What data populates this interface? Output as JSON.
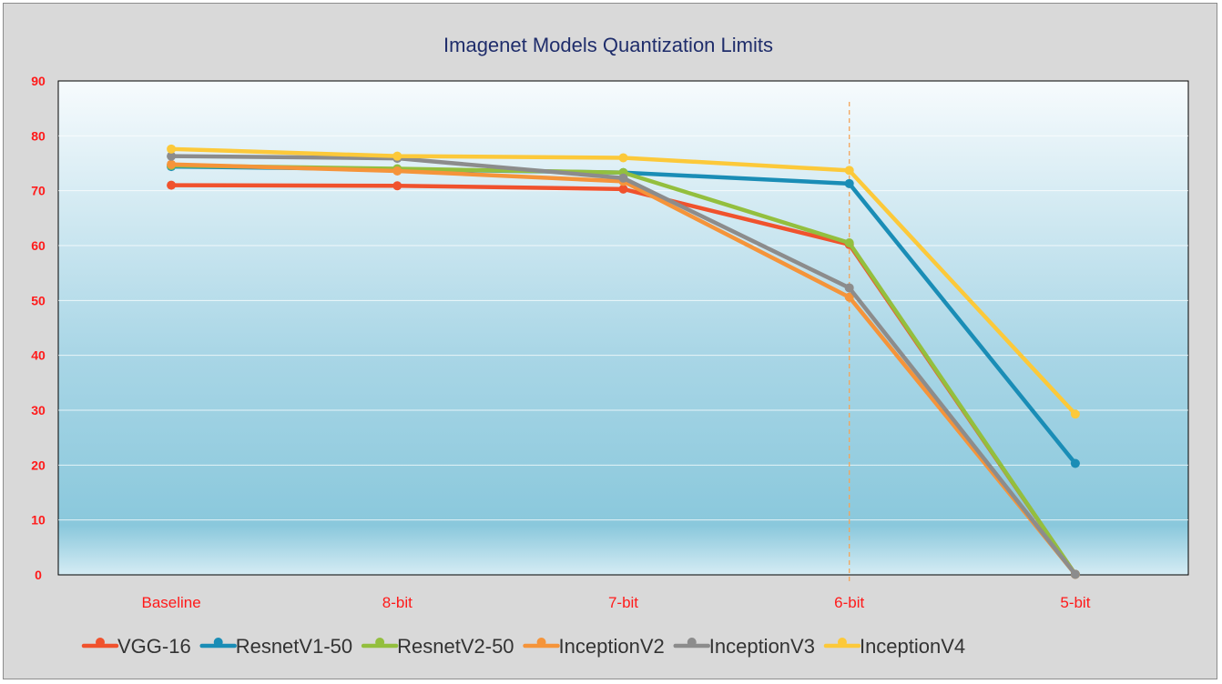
{
  "chart_data": {
    "type": "line",
    "title": "Imagenet Models Quantization Limits",
    "xlabel": "",
    "ylabel": "",
    "categories": [
      "Baseline",
      "8-bit",
      "7-bit",
      "6-bit",
      "5-bit"
    ],
    "ylim": [
      0,
      90
    ],
    "yticks": [
      "0",
      "10",
      "20",
      "30",
      "40",
      "50",
      "60",
      "70",
      "80",
      "90"
    ],
    "grid": true,
    "legend_position": "bottom",
    "reference_line": {
      "category": "6-bit",
      "color": "#f4a55a",
      "style": "dashed"
    },
    "series": [
      {
        "name": "VGG-16",
        "color": "#f0522d",
        "values": [
          71.0,
          70.9,
          70.3,
          60.2,
          0.1
        ]
      },
      {
        "name": "ResnetV1-50",
        "color": "#1a8db6",
        "values": [
          74.4,
          73.9,
          73.3,
          71.3,
          20.3
        ]
      },
      {
        "name": "ResnetV2-50",
        "color": "#93bf3e",
        "values": [
          74.6,
          74.0,
          73.3,
          60.5,
          0.1
        ]
      },
      {
        "name": "InceptionV2",
        "color": "#f5943a",
        "values": [
          74.8,
          73.6,
          71.7,
          50.6,
          0.1
        ]
      },
      {
        "name": "InceptionV3",
        "color": "#8c8c8c",
        "values": [
          76.3,
          75.9,
          72.3,
          52.3,
          0.1
        ]
      },
      {
        "name": "InceptionV4",
        "color": "#fcc93a",
        "values": [
          77.6,
          76.3,
          76.0,
          73.7,
          29.3
        ]
      }
    ]
  }
}
